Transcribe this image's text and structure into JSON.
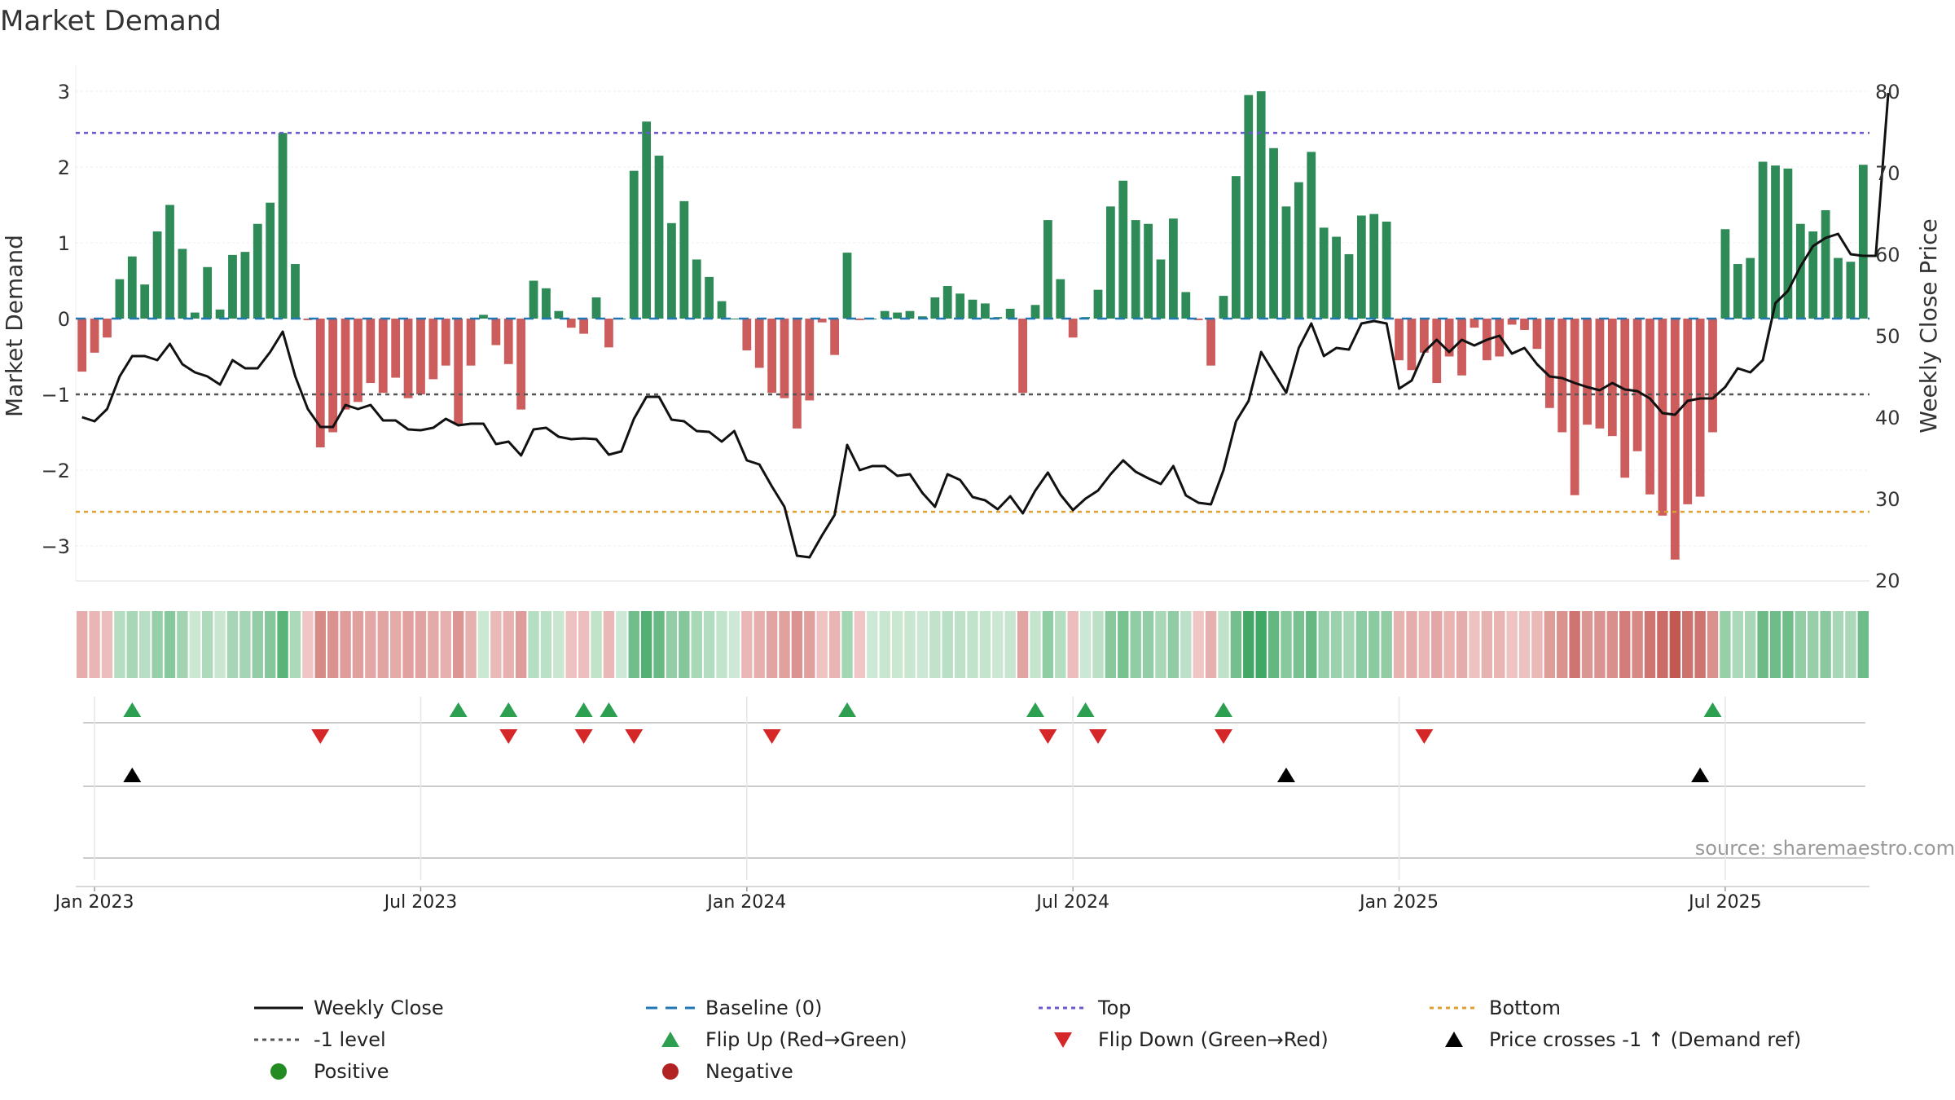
{
  "chart_data": {
    "type": "bar",
    "title": "Market Demand",
    "ylabel": "Market Demand",
    "y2label": "Weekly Close Price",
    "ylim": [
      -3.5,
      3.0
    ],
    "y2lim": [
      19,
      80
    ],
    "yticks": [
      "3",
      "2",
      "1",
      "0",
      "−1",
      "−2",
      "−3"
    ],
    "ytick_values": [
      3,
      2,
      1,
      0,
      -1,
      -2,
      -3
    ],
    "y2ticks": [
      "80",
      "70",
      "60",
      "50",
      "40",
      "30",
      "20"
    ],
    "y2tick_values": [
      80,
      70,
      60,
      50,
      40,
      30,
      20
    ],
    "reference_lines": {
      "top": 2.45,
      "bottom": -2.55,
      "minus_one": -1,
      "baseline": 0
    },
    "xticks": [
      {
        "label": "Jan 2023",
        "week": 1
      },
      {
        "label": "Jul 2023",
        "week": 27
      },
      {
        "label": "Jan 2024",
        "week": 53
      },
      {
        "label": "Jul 2024",
        "week": 79
      },
      {
        "label": "Jan 2025",
        "week": 105
      },
      {
        "label": "Jul 2025",
        "week": 131
      }
    ],
    "series": [
      {
        "name": "Market Demand",
        "values": [
          -0.7,
          -0.45,
          -0.25,
          0.52,
          0.82,
          0.45,
          1.15,
          1.5,
          0.92,
          0.08,
          0.68,
          0.12,
          0.84,
          0.88,
          1.25,
          1.53,
          2.45,
          0.72,
          -0.02,
          -1.7,
          -1.5,
          -1.2,
          -1.1,
          -0.85,
          -0.98,
          -0.78,
          -1.05,
          -1.0,
          -0.8,
          -0.62,
          -1.4,
          -0.62,
          0.05,
          -0.35,
          -0.6,
          -1.2,
          0.5,
          0.4,
          0.1,
          -0.12,
          -0.2,
          0.28,
          -0.38,
          0.0,
          1.95,
          2.6,
          2.15,
          1.26,
          1.55,
          0.78,
          0.55,
          0.23,
          0.0,
          -0.42,
          -0.65,
          -0.98,
          -1.05,
          -1.45,
          -1.08,
          -0.05,
          -0.48,
          0.87,
          -0.02,
          0.0,
          0.1,
          0.08,
          0.1,
          0.03,
          0.28,
          0.43,
          0.33,
          0.25,
          0.2,
          0.02,
          0.13,
          -0.98,
          0.18,
          1.3,
          0.52,
          -0.25,
          0.02,
          0.38,
          1.48,
          1.82,
          1.3,
          1.25,
          0.78,
          1.32,
          0.35,
          -0.02,
          -0.62,
          0.3,
          1.88,
          2.95,
          3.0,
          2.25,
          1.48,
          1.8,
          2.2,
          1.2,
          1.08,
          0.85,
          1.36,
          1.38,
          1.28,
          -0.55,
          -0.68,
          -0.45,
          -0.85,
          -0.5,
          -0.75,
          -0.12,
          -0.55,
          -0.5,
          -0.08,
          -0.15,
          -0.4,
          -1.18,
          -1.5,
          -2.33,
          -1.4,
          -1.45,
          -1.55,
          -2.1,
          -1.75,
          -2.32,
          -2.6,
          -3.18,
          -2.45,
          -2.35,
          -1.5,
          1.18,
          0.72,
          0.8,
          2.07,
          2.02,
          1.98,
          1.25,
          1.15,
          1.43,
          0.8,
          0.75,
          2.03
        ],
        "color_positive": "#2e8b57",
        "color_negative": "#cd5c5c"
      },
      {
        "name": "Weekly Close",
        "values": [
          40,
          39.5,
          41,
          45,
          47.5,
          47.5,
          47,
          49,
          46.5,
          45.5,
          45,
          44,
          47,
          46,
          46,
          48,
          50.5,
          45,
          41,
          38.8,
          38.8,
          41.5,
          41,
          41.5,
          39.6,
          39.6,
          38.5,
          38.4,
          38.7,
          39.8,
          39,
          39.2,
          39.2,
          36.7,
          37,
          35.3,
          38.5,
          38.7,
          37.6,
          37.3,
          37.4,
          37.3,
          35.4,
          35.8,
          39.8,
          42.5,
          42.5,
          39.7,
          39.5,
          38.3,
          38.2,
          37,
          38.3,
          34.7,
          34.2,
          31.5,
          29,
          23,
          22.8,
          25.5,
          28,
          36.6,
          33.5,
          34,
          34,
          32.8,
          33,
          30.7,
          29,
          33,
          32.3,
          30.2,
          29.8,
          28.7,
          30.3,
          28.2,
          31,
          33.2,
          30.5,
          28.6,
          30,
          31,
          33,
          34.7,
          33.3,
          32.5,
          31.8,
          34,
          30.4,
          29.5,
          29.3,
          33.5,
          39.5,
          42,
          48,
          45.5,
          43,
          48.5,
          51.5,
          47.5,
          48.5,
          48.3,
          51.5,
          51.8,
          51.5,
          43.5,
          44.5,
          48,
          49.5,
          48,
          49.5,
          48.8,
          49.5,
          50,
          47.8,
          48.5,
          46.5,
          45,
          44.8,
          44.2,
          43.7,
          43.3,
          44.2,
          43.4,
          43.2,
          42.3,
          40.5,
          40.3,
          42,
          42.3,
          42.3,
          43.7,
          46,
          45.5,
          47,
          54,
          55.5,
          58.5,
          61,
          62,
          62.5,
          60,
          59.8,
          59.8,
          79.8
        ]
      }
    ],
    "heat_strip": "demand-intensity colour strip (green positive, red negative)",
    "flip_up_weeks": [
      4,
      30,
      34,
      40,
      42,
      61,
      76,
      80,
      91,
      130
    ],
    "flip_down_weeks": [
      19,
      34,
      40,
      44,
      55,
      77,
      81,
      91,
      107
    ],
    "price_cross_weeks": [
      4,
      96,
      129
    ],
    "source_text": "source: sharemaestro.com",
    "legend": [
      {
        "label": "Weekly Close",
        "kind": "line",
        "color": "#111111"
      },
      {
        "label": "Baseline (0)",
        "kind": "dash",
        "color": "#1f77b4"
      },
      {
        "label": "Top",
        "kind": "dot",
        "color": "#6a5acd"
      },
      {
        "label": "Bottom",
        "kind": "dot",
        "color": "#e0a030"
      },
      {
        "label": "-1 level",
        "kind": "dot",
        "color": "#555555"
      },
      {
        "label": "Flip Up (Red→Green)",
        "kind": "triangle-up",
        "color": "#2ca050"
      },
      {
        "label": "Flip Down (Green→Red)",
        "kind": "triangle-down",
        "color": "#d62728"
      },
      {
        "label": "Price crosses -1 ↑ (Demand ref)",
        "kind": "triangle-up",
        "color": "#000000"
      },
      {
        "label": "Positive",
        "kind": "circle",
        "color": "#228b22"
      },
      {
        "label": "Negative",
        "kind": "circle",
        "color": "#b22222"
      }
    ]
  }
}
